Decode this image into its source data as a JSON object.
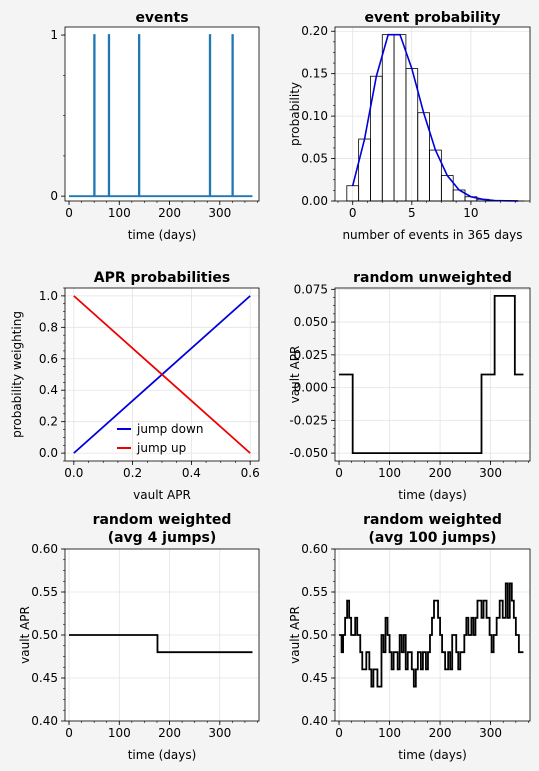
{
  "chart_data": [
    {
      "type": "line",
      "title": "events",
      "xlabel": "time (days)",
      "ylabel": "",
      "xlim": [
        -8,
        378
      ],
      "ylim": [
        -0.03,
        1.05
      ],
      "xticks": [
        0,
        100,
        200,
        300
      ],
      "yticks": [
        0,
        1
      ],
      "grid": false,
      "series": [
        {
          "color": "#1f77b4",
          "x": [
            0,
            50,
            50,
            51,
            51,
            79,
            79,
            80,
            80,
            139,
            139,
            140,
            140,
            280,
            280,
            281,
            281,
            325,
            325,
            326,
            326,
            365
          ],
          "y": [
            0,
            0,
            1,
            1,
            0,
            0,
            1,
            1,
            0,
            0,
            1,
            1,
            0,
            0,
            1,
            1,
            0,
            0,
            1,
            1,
            0,
            0
          ]
        }
      ]
    },
    {
      "type": "bar",
      "title": "event probability",
      "xlabel": "number of events in 365 days",
      "ylabel": "probability",
      "xlim": [
        -1.5,
        15
      ],
      "ylim": [
        0,
        0.205
      ],
      "xticks": [
        0,
        5,
        10
      ],
      "yticks": [
        0.0,
        0.05,
        0.1,
        0.15,
        0.2
      ],
      "grid": true,
      "bars": {
        "x": [
          0,
          1,
          2,
          3,
          4,
          5,
          6,
          7,
          8,
          9,
          10,
          11,
          12,
          13,
          14
        ],
        "values": [
          0.018,
          0.073,
          0.147,
          0.196,
          0.196,
          0.156,
          0.104,
          0.06,
          0.03,
          0.013,
          0.005,
          0.002,
          0.0006,
          0.0002,
          0.0001
        ]
      },
      "line": {
        "color": "#0000dd",
        "x": [
          0,
          1,
          2,
          3,
          4,
          5,
          6,
          7,
          8,
          9,
          10,
          11,
          12,
          13,
          14
        ],
        "y": [
          0.018,
          0.073,
          0.147,
          0.196,
          0.196,
          0.156,
          0.104,
          0.06,
          0.03,
          0.013,
          0.005,
          0.002,
          0.0006,
          0.0002,
          0.0001
        ]
      }
    },
    {
      "type": "line",
      "title": "APR probabilities",
      "xlabel": "vault APR",
      "ylabel": "probability weighting",
      "xlim": [
        -0.03,
        0.63
      ],
      "ylim": [
        -0.05,
        1.05
      ],
      "xticks": [
        0.0,
        0.2,
        0.4,
        0.6
      ],
      "yticks": [
        0.0,
        0.2,
        0.4,
        0.6,
        0.8,
        1.0
      ],
      "grid": true,
      "legend": "lower-center",
      "series": [
        {
          "name": "jump down",
          "color": "#0000dd",
          "x": [
            0,
            0.6
          ],
          "y": [
            0,
            1
          ]
        },
        {
          "name": "jump up",
          "color": "#ee0000",
          "x": [
            0,
            0.6
          ],
          "y": [
            1,
            0
          ]
        }
      ]
    },
    {
      "type": "line",
      "title": "random unweighted",
      "xlabel": "time (days)",
      "ylabel": "vault APR",
      "xlim": [
        -8,
        378
      ],
      "ylim": [
        -0.056,
        0.076
      ],
      "xticks": [
        0,
        100,
        200,
        300
      ],
      "yticks": [
        -0.05,
        -0.025,
        0.0,
        0.025,
        0.05,
        0.075
      ],
      "grid": true,
      "series": [
        {
          "color": "#000000",
          "x": [
            0,
            27,
            27,
            282,
            282,
            308,
            308,
            348,
            348,
            365
          ],
          "y": [
            0.01,
            0.01,
            -0.05,
            -0.05,
            0.01,
            0.01,
            0.07,
            0.07,
            0.01,
            0.01
          ]
        }
      ]
    },
    {
      "type": "line",
      "title": "random weighted\n(avg 4 jumps)",
      "xlabel": "time (days)",
      "ylabel": "vault APR",
      "xlim": [
        -8,
        378
      ],
      "ylim": [
        0.4,
        0.6
      ],
      "xticks": [
        0,
        100,
        200,
        300
      ],
      "yticks": [
        0.4,
        0.45,
        0.5,
        0.55,
        0.6
      ],
      "grid": true,
      "series": [
        {
          "color": "#000000",
          "x": [
            0,
            176,
            176,
            365
          ],
          "y": [
            0.5,
            0.5,
            0.48,
            0.48
          ]
        }
      ]
    },
    {
      "type": "line",
      "title": "random weighted\n(avg 100 jumps)",
      "xlabel": "time (days)",
      "ylabel": "vault APR",
      "xlim": [
        -8,
        378
      ],
      "ylim": [
        0.4,
        0.6
      ],
      "xticks": [
        0,
        100,
        200,
        300
      ],
      "yticks": [
        0.4,
        0.45,
        0.5,
        0.55,
        0.6
      ],
      "grid": true,
      "series": [
        {
          "color": "#000000",
          "step": true,
          "x": [
            0,
            5,
            8,
            12,
            16,
            20,
            24,
            32,
            36,
            42,
            46,
            54,
            60,
            64,
            68,
            76,
            84,
            88,
            92,
            96,
            100,
            104,
            108,
            116,
            120,
            124,
            128,
            132,
            136,
            144,
            148,
            152,
            156,
            162,
            166,
            172,
            176,
            180,
            184,
            188,
            196,
            200,
            204,
            210,
            216,
            220,
            224,
            232,
            236,
            240,
            248,
            252,
            256,
            262,
            266,
            270,
            274,
            282,
            286,
            292,
            298,
            302,
            306,
            312,
            318,
            324,
            330,
            334,
            338,
            342,
            346,
            350,
            356,
            365
          ],
          "y": [
            0.5,
            0.48,
            0.5,
            0.52,
            0.54,
            0.52,
            0.5,
            0.52,
            0.5,
            0.48,
            0.46,
            0.48,
            0.46,
            0.44,
            0.46,
            0.44,
            0.5,
            0.48,
            0.52,
            0.5,
            0.48,
            0.46,
            0.48,
            0.46,
            0.5,
            0.48,
            0.5,
            0.46,
            0.48,
            0.46,
            0.44,
            0.46,
            0.48,
            0.46,
            0.48,
            0.46,
            0.48,
            0.5,
            0.52,
            0.54,
            0.52,
            0.5,
            0.48,
            0.46,
            0.48,
            0.46,
            0.5,
            0.48,
            0.46,
            0.48,
            0.5,
            0.52,
            0.5,
            0.52,
            0.5,
            0.52,
            0.54,
            0.52,
            0.54,
            0.52,
            0.5,
            0.48,
            0.5,
            0.52,
            0.54,
            0.52,
            0.56,
            0.52,
            0.56,
            0.54,
            0.52,
            0.5,
            0.48,
            0.48
          ]
        }
      ]
    }
  ]
}
